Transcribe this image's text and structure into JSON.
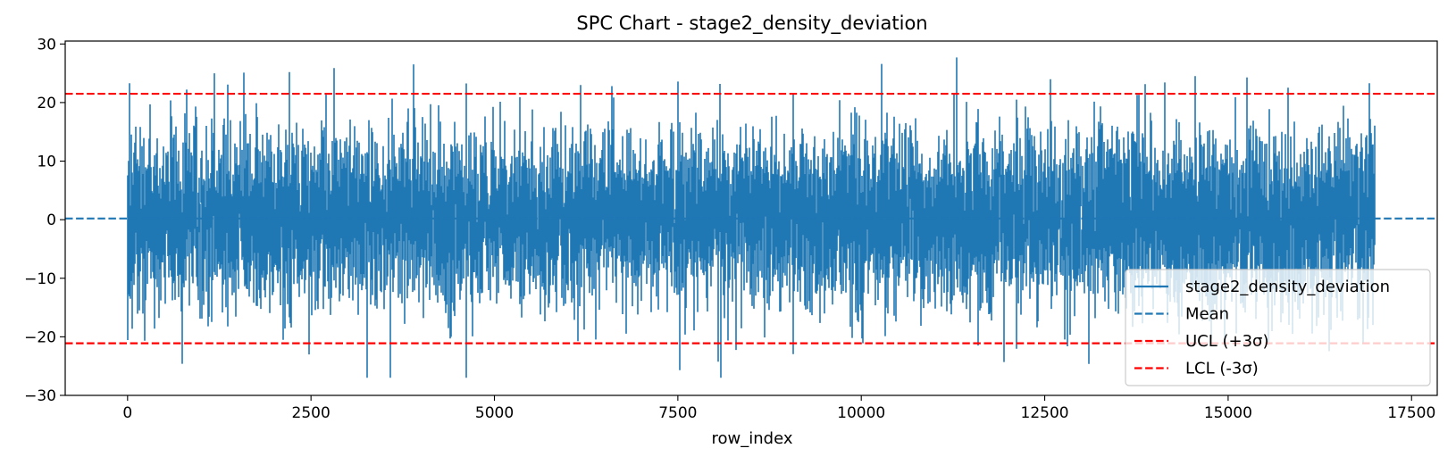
{
  "chart_data": {
    "type": "line",
    "title": "SPC Chart - stage2_density_deviation",
    "xlabel": "row_index",
    "ylabel": "",
    "xlim": [
      -850,
      17850
    ],
    "ylim": [
      -30,
      30.5
    ],
    "xticks": [
      0,
      2500,
      5000,
      7500,
      10000,
      12500,
      15000,
      17500
    ],
    "yticks": [
      -30,
      -20,
      -10,
      0,
      10,
      20,
      30
    ],
    "xtick_labels": [
      "0",
      "2500",
      "5000",
      "7500",
      "10000",
      "12500",
      "15000",
      "17500"
    ],
    "ytick_labels": [
      "−30",
      "−20",
      "−10",
      "0",
      "10",
      "20",
      "30"
    ],
    "grid": false,
    "legend_position": "lower right",
    "series": [
      {
        "name": "stage2_density_deviation",
        "kind": "noisy-line",
        "color": "#1f77b4",
        "n_points": 17000,
        "x_range": [
          0,
          17000
        ],
        "mean": 0.2,
        "std": 7.1,
        "min": -27,
        "max": 27.7,
        "notable_points": [
          {
            "x": 30,
            "y": 23.3
          },
          {
            "x": 1180,
            "y": 25
          },
          {
            "x": 2200,
            "y": 25.2
          },
          {
            "x": 2810,
            "y": 25.9
          },
          {
            "x": 3260,
            "y": -27
          },
          {
            "x": 740,
            "y": -24.6
          },
          {
            "x": 7530,
            "y": -25.7
          },
          {
            "x": 10280,
            "y": 26.6
          },
          {
            "x": 11300,
            "y": 27.7
          },
          {
            "x": 11940,
            "y": -24.3
          },
          {
            "x": 15260,
            "y": 24.3
          },
          {
            "x": 16920,
            "y": 23.3
          }
        ]
      },
      {
        "name": "Mean",
        "kind": "hline",
        "value": 0.2,
        "color": "#1f77b4",
        "dash": true
      },
      {
        "name": "UCL (+3σ)",
        "kind": "hline",
        "value": 21.5,
        "color": "#ff0000",
        "dash": true
      },
      {
        "name": "LCL (-3σ)",
        "kind": "hline",
        "value": -21.1,
        "color": "#ff0000",
        "dash": true
      }
    ]
  }
}
